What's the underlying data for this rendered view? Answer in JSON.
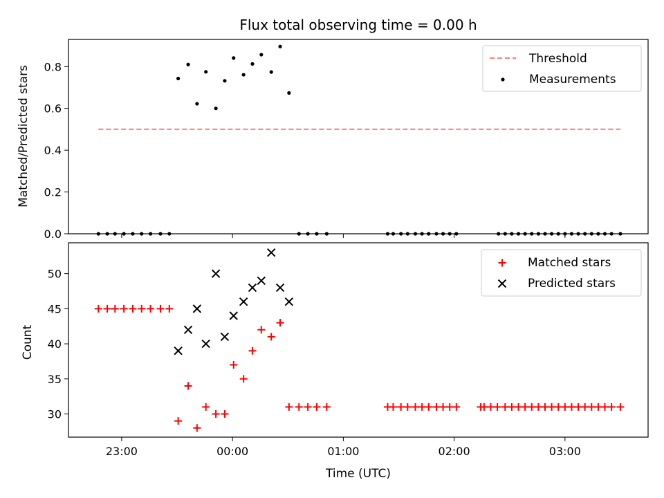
{
  "chart_data": {
    "type": "scatter",
    "title": "Flux total observing time = 0.00 h",
    "xlabel": "Time (UTC)",
    "x_unit": "hours UTC (values after 24:00 are the following day)",
    "xlim": [
      22.52,
      27.75
    ],
    "xticks": [
      {
        "value": 23,
        "label": "23:00"
      },
      {
        "value": 24,
        "label": "00:00"
      },
      {
        "value": 25,
        "label": "01:00"
      },
      {
        "value": 26,
        "label": "02:00"
      },
      {
        "value": 27,
        "label": "03:00"
      }
    ],
    "panels": [
      {
        "ylabel": "Matched/Predicted stars",
        "ylim": [
          0,
          0.93
        ],
        "yticks": [
          {
            "value": 0.0,
            "label": "0.0"
          },
          {
            "value": 0.2,
            "label": "0.2"
          },
          {
            "value": 0.4,
            "label": "0.4"
          },
          {
            "value": 0.6,
            "label": "0.6"
          },
          {
            "value": 0.8,
            "label": "0.8"
          }
        ],
        "legend_position": "upper right",
        "series": [
          {
            "name": "Threshold",
            "style": "dashed-line",
            "color": "#ff7f7f",
            "x": [
              22.79,
              27.5
            ],
            "y": [
              0.5,
              0.5
            ]
          },
          {
            "name": "Measurements",
            "style": "dot",
            "color": "#000000",
            "x": [
              22.79,
              22.87,
              22.94,
              23.02,
              23.1,
              23.18,
              23.26,
              23.35,
              23.43,
              23.51,
              23.6,
              23.68,
              23.76,
              23.85,
              23.93,
              24.01,
              24.1,
              24.18,
              24.26,
              24.35,
              24.43,
              24.51,
              24.6,
              24.68,
              24.76,
              24.85,
              26.4,
              26.46,
              26.52,
              26.58,
              26.64,
              26.7,
              26.76,
              26.82,
              26.88,
              26.94,
              27.0,
              27.06,
              27.12,
              27.18,
              27.24,
              27.3,
              27.36,
              27.42,
              27.5
            ],
            "y": [
              0,
              0,
              0,
              0,
              0,
              0,
              0,
              0,
              0,
              0.743,
              0.81,
              0.622,
              0.775,
              0.6,
              0.732,
              0.841,
              0.761,
              0.813,
              0.857,
              0.774,
              0.896,
              0.674,
              0,
              0,
              0,
              0,
              0,
              0,
              0,
              0,
              0,
              0,
              0,
              0,
              0,
              0,
              0,
              0,
              0,
              0,
              0,
              0,
              0,
              0,
              0
            ]
          },
          {
            "name": "",
            "style": "dot",
            "color": "#000000",
            "x": [
              25.4,
              25.45,
              25.52,
              25.58,
              25.65,
              25.71,
              25.77,
              25.84,
              25.9,
              25.96,
              26.02
            ],
            "y": [
              0,
              0,
              0,
              0,
              0,
              0,
              0,
              0,
              0,
              0,
              0
            ]
          }
        ]
      },
      {
        "ylabel": "Count",
        "ylim": [
          26.7,
          54.4
        ],
        "yticks": [
          {
            "value": 30,
            "label": "30"
          },
          {
            "value": 35,
            "label": "35"
          },
          {
            "value": 40,
            "label": "40"
          },
          {
            "value": 45,
            "label": "45"
          },
          {
            "value": 50,
            "label": "50"
          }
        ],
        "legend_position": "upper right",
        "series": [
          {
            "name": "Matched stars",
            "style": "plus",
            "color": "#ff0000",
            "x": [
              22.79,
              22.87,
              22.94,
              23.02,
              23.1,
              23.18,
              23.26,
              23.35,
              23.43,
              23.51,
              23.6,
              23.68,
              23.76,
              23.85,
              23.93,
              24.01,
              24.1,
              24.18,
              24.26,
              24.35,
              24.43,
              24.51,
              24.6,
              24.68,
              24.76,
              24.85,
              25.4,
              25.45,
              25.52,
              25.58,
              25.65,
              25.71,
              25.77,
              25.84,
              25.9,
              25.96,
              26.02,
              26.24,
              26.27,
              26.33,
              26.39,
              26.46,
              26.52,
              26.58,
              26.64,
              26.7,
              26.76,
              26.82,
              26.88,
              26.94,
              27.0,
              27.06,
              27.12,
              27.18,
              27.24,
              27.3,
              27.36,
              27.42,
              27.5
            ],
            "y": [
              45,
              45,
              45,
              45,
              45,
              45,
              45,
              45,
              45,
              29,
              34,
              28,
              31,
              30,
              30,
              37,
              35,
              39,
              42,
              41,
              43,
              31,
              31,
              31,
              31,
              31,
              31,
              31,
              31,
              31,
              31,
              31,
              31,
              31,
              31,
              31,
              31,
              31,
              31,
              31,
              31,
              31,
              31,
              31,
              31,
              31,
              31,
              31,
              31,
              31,
              31,
              31,
              31,
              31,
              31,
              31,
              31,
              31,
              31
            ]
          },
          {
            "name": "Predicted stars",
            "style": "x",
            "color": "#000000",
            "x": [
              23.51,
              23.6,
              23.68,
              23.76,
              23.85,
              23.93,
              24.01,
              24.1,
              24.18,
              24.26,
              24.35,
              24.43,
              24.51
            ],
            "y": [
              39,
              42,
              45,
              40,
              50,
              41,
              44,
              46,
              48,
              49,
              53,
              48,
              46
            ]
          }
        ]
      }
    ]
  }
}
